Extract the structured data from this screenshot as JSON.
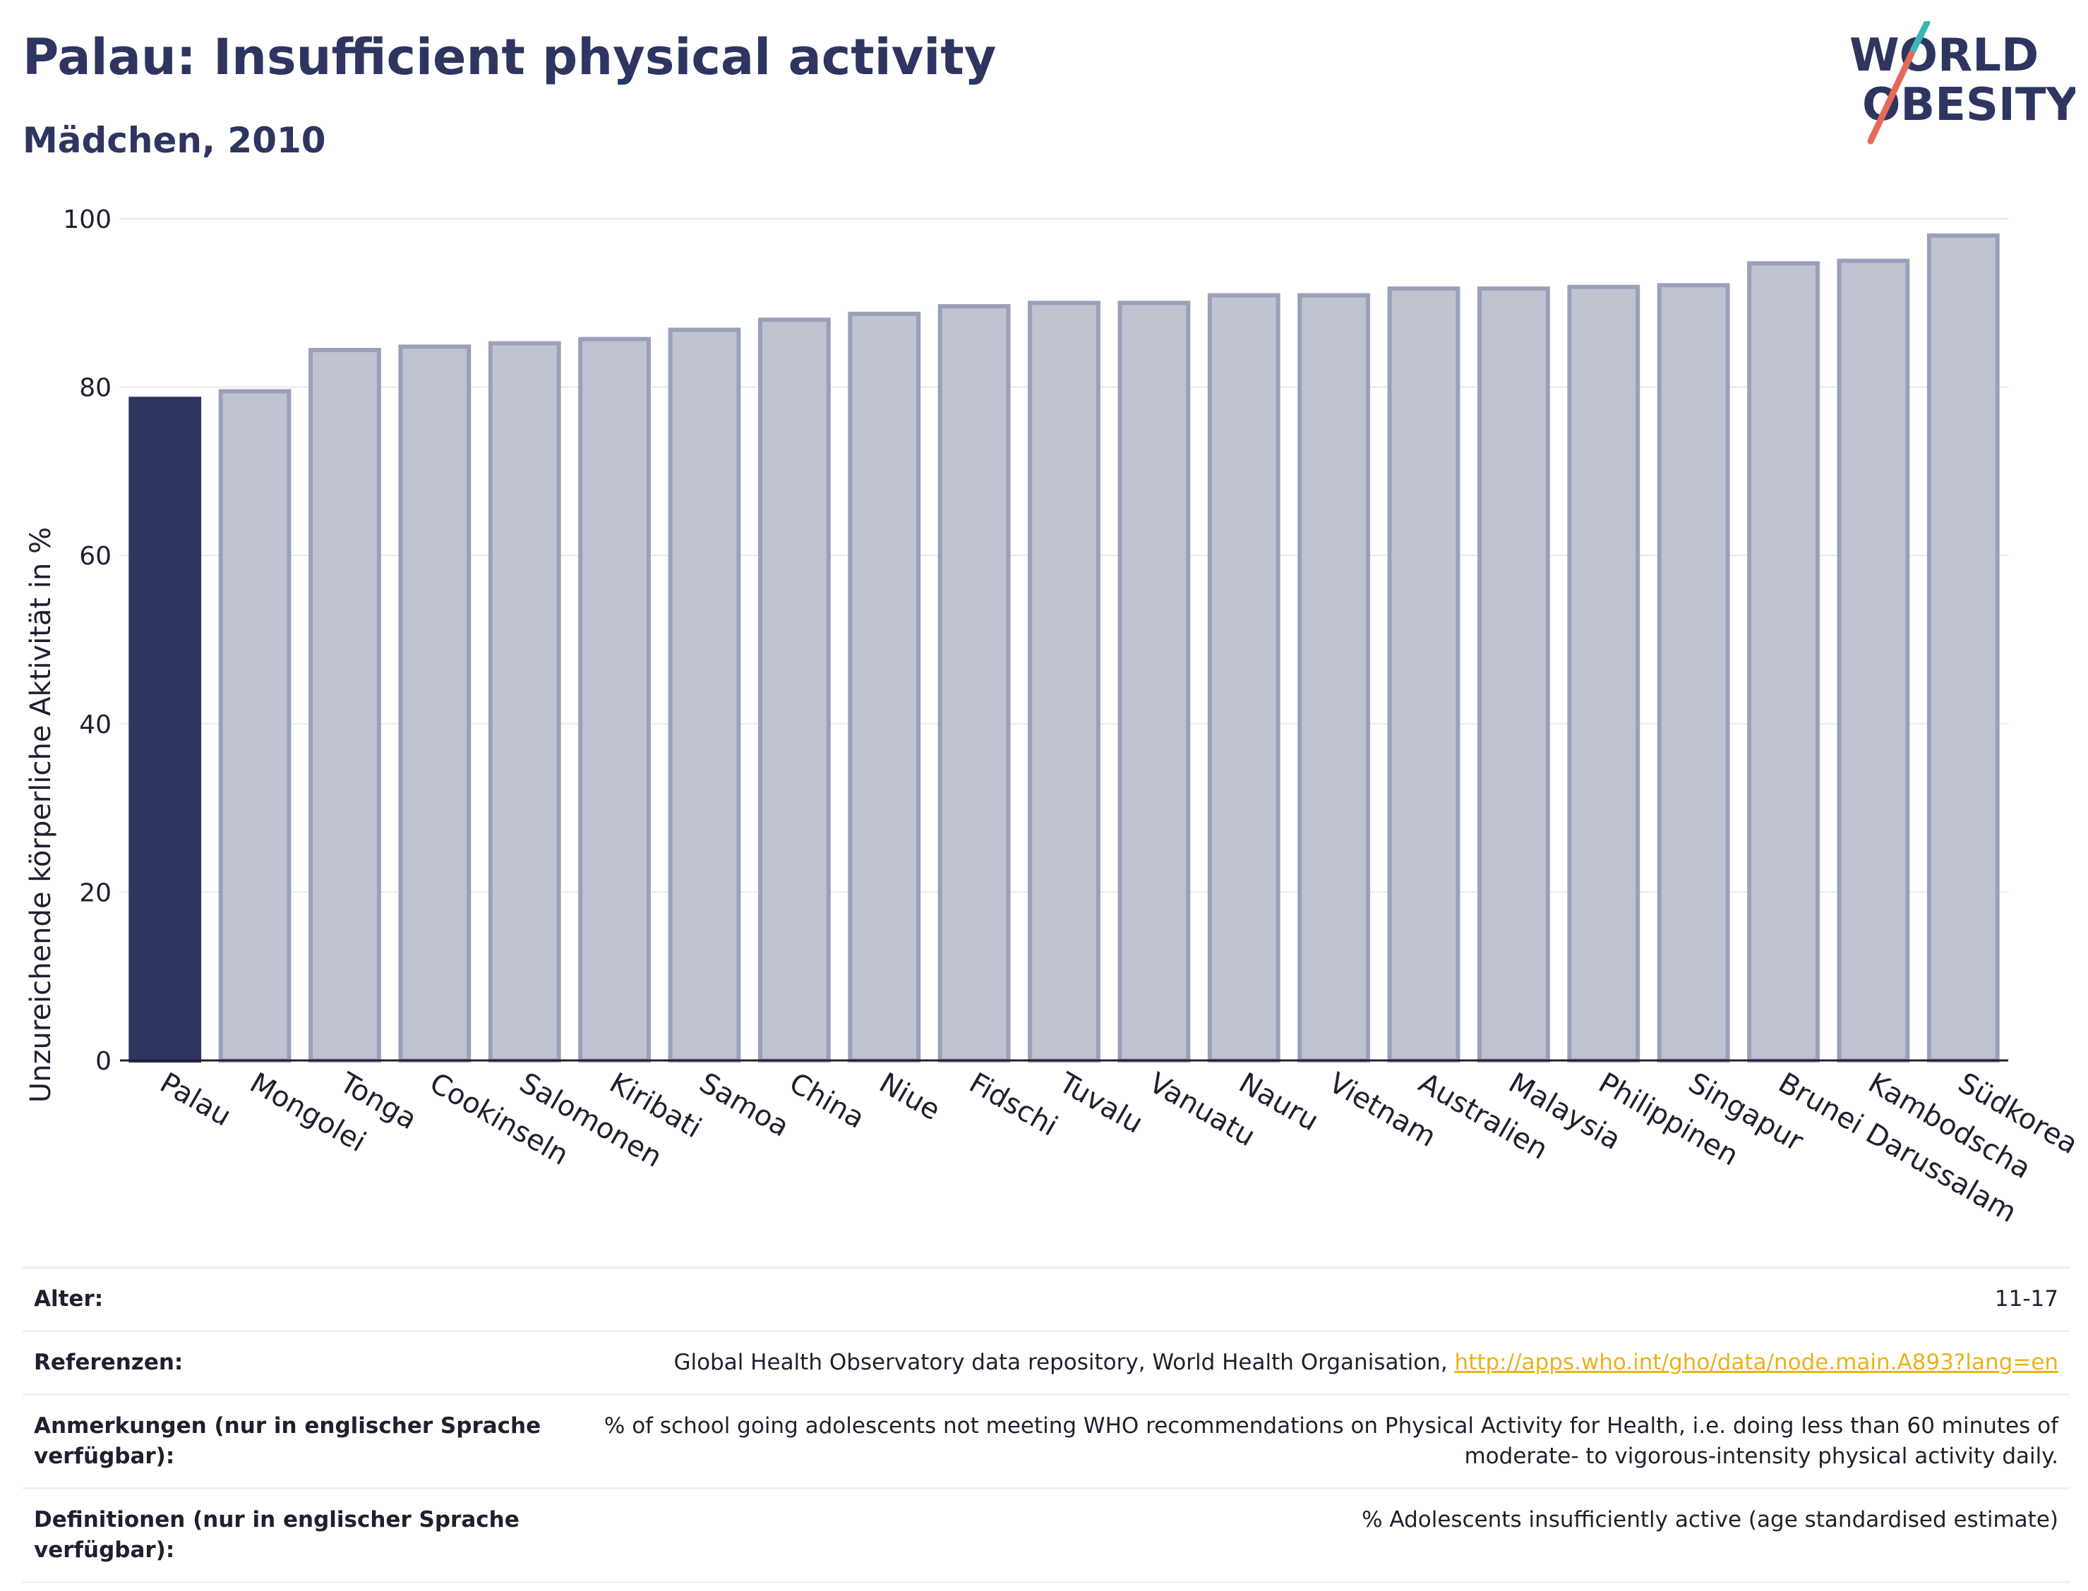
{
  "header": {
    "title": "Palau: Insufficient physical activity",
    "subtitle": "Mädchen, 2010",
    "logo_line1": "WORLD",
    "logo_line2": "OBESITY"
  },
  "colors": {
    "highlight": "#2d3560",
    "bar_fill": "#c0c3d0",
    "bar_border": "#9aa0b9",
    "grid": "#e8e9ee",
    "axis": "#1e2030",
    "link": "#e8b31a",
    "logo_teal": "#3ab7b5",
    "logo_coral": "#e66a5a"
  },
  "chart_data": {
    "type": "bar",
    "ylabel": "Unzureichende körperliche Aktivität in %",
    "ylim": [
      0,
      100
    ],
    "yticks": [
      0,
      20,
      40,
      60,
      80,
      100
    ],
    "grid": true,
    "highlight": "Palau",
    "categories": [
      "Palau",
      "Mongolei",
      "Tonga",
      "Cookinseln",
      "Salomonen",
      "Kiribati",
      "Samoa",
      "China",
      "Niue",
      "Fidschi",
      "Tuvalu",
      "Vanuatu",
      "Nauru",
      "Vietnam",
      "Australien",
      "Malaysia",
      "Philippinen",
      "Singapur",
      "Brunei Darussalam",
      "Kambodscha",
      "Südkorea"
    ],
    "values": [
      78.6,
      79.5,
      84.4,
      84.8,
      85.2,
      85.7,
      86.8,
      88.0,
      88.7,
      89.6,
      90.0,
      90.0,
      90.9,
      90.9,
      91.7,
      91.7,
      91.9,
      92.1,
      94.7,
      95.0,
      98.0
    ]
  },
  "info": [
    {
      "label": "Alter:",
      "value": "11-17"
    },
    {
      "label": "Referenzen:",
      "value": "Global Health Observatory data repository, World Health Organisation, ",
      "link": "http://apps.who.int/gho/data/node.main.A893?lang=en"
    },
    {
      "label": "Anmerkungen (nur in englischer Sprache verfügbar):",
      "value": "% of school going adolescents not meeting WHO recommendations on Physical Activity for Health, i.e. doing less than 60 minutes of moderate- to vigorous-intensity physical activity daily."
    },
    {
      "label": "Definitionen (nur in englischer Sprache verfügbar):",
      "value": "% Adolescents insufficiently active (age standardised estimate)"
    }
  ]
}
